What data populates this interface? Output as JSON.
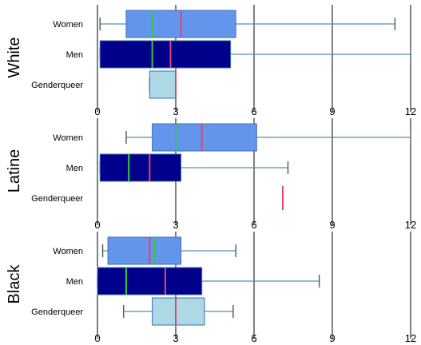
{
  "chart_data": [
    {
      "type": "box",
      "panel_label": "White",
      "xlim": [
        0,
        12
      ],
      "xticks": [
        "0",
        "3",
        "6",
        "9",
        "12"
      ],
      "grid": true,
      "categories": [
        "Women",
        "Men",
        "Genderqueer"
      ],
      "boxes": [
        {
          "name": "Women",
          "whisker_low": 0.1,
          "q1": 1.1,
          "median": 2.1,
          "mean": 3.2,
          "q3": 5.3,
          "whisker_high": 11.4,
          "fill": "#6495ED"
        },
        {
          "name": "Men",
          "whisker_low": 0.1,
          "q1": 0.1,
          "median": 2.1,
          "mean": 2.8,
          "q3": 5.1,
          "whisker_high": 12.0,
          "fill": "#00008B"
        },
        {
          "name": "Genderqueer",
          "whisker_low": 2.0,
          "q1": 2.0,
          "median": 3.0,
          "mean": 3.0,
          "q3": 3.0,
          "whisker_high": 3.0,
          "fill": "#ADD8E6"
        }
      ]
    },
    {
      "type": "box",
      "panel_label": "Latine",
      "xlim": [
        0,
        12
      ],
      "xticks": [
        "0",
        "3",
        "6",
        "9",
        "12"
      ],
      "grid": true,
      "categories": [
        "Women",
        "Men",
        "Genderqueer"
      ],
      "boxes": [
        {
          "name": "Women",
          "whisker_low": 1.1,
          "q1": 2.1,
          "median": 3.0,
          "mean": 4.0,
          "q3": 6.1,
          "whisker_high": 12.0,
          "fill": "#6495ED"
        },
        {
          "name": "Men",
          "whisker_low": 0.1,
          "q1": 0.1,
          "median": 1.2,
          "mean": 2.0,
          "q3": 3.2,
          "whisker_high": 7.3,
          "fill": "#00008B"
        },
        {
          "name": "Genderqueer",
          "whisker_low": 7.1,
          "q1": 7.1,
          "median": 7.1,
          "mean": 7.1,
          "q3": 7.1,
          "whisker_high": 7.1,
          "fill": "#ADD8E6"
        }
      ]
    },
    {
      "type": "box",
      "panel_label": "Black",
      "xlim": [
        0,
        12
      ],
      "xticks": [
        "0",
        "3",
        "6",
        "9",
        "12"
      ],
      "grid": true,
      "categories": [
        "Women",
        "Men",
        "Genderqueer"
      ],
      "boxes": [
        {
          "name": "Women",
          "whisker_low": 0.2,
          "q1": 0.4,
          "median": 2.2,
          "mean": 2.0,
          "q3": 3.2,
          "whisker_high": 5.3,
          "fill": "#6495ED"
        },
        {
          "name": "Men",
          "whisker_low": 0.0,
          "q1": 0.0,
          "median": 1.1,
          "mean": 2.6,
          "q3": 4.0,
          "whisker_high": 8.5,
          "fill": "#00008B"
        },
        {
          "name": "Genderqueer",
          "whisker_low": 1.0,
          "q1": 2.1,
          "median": 3.0,
          "mean": 3.0,
          "q3": 4.1,
          "whisker_high": 5.2,
          "fill": "#ADD8E6"
        }
      ]
    }
  ],
  "colors": {
    "women": "#6495ED",
    "men": "#00008B",
    "genderqueer": "#ADD8E6",
    "median_line": "#2ECC40",
    "mean_line": "#E0456A",
    "whisker": "#4A90B8",
    "gridline": "#000000"
  }
}
